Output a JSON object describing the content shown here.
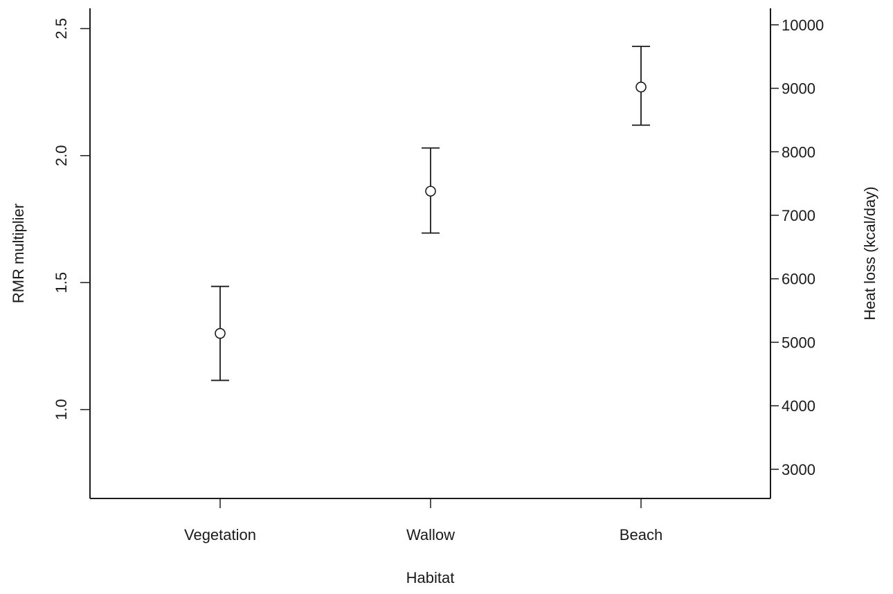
{
  "chart_data": {
    "type": "scatter",
    "title": "",
    "xlabel": "Habitat",
    "ylabel": "RMR multiplier",
    "y2label": "Heat loss (kcal/day)",
    "categories": [
      "Vegetation",
      "Wallow",
      "Beach"
    ],
    "series": [
      {
        "values": [
          1.3,
          1.86,
          2.27
        ],
        "lower": [
          1.115,
          1.695,
          2.12
        ],
        "upper": [
          1.485,
          2.03,
          2.43
        ]
      }
    ],
    "ylim": [
      0.65,
      2.58
    ],
    "yticks": [
      1.0,
      1.5,
      2.0,
      2.5
    ],
    "yticklabels": [
      "1.0",
      "1.5",
      "2.0",
      "2.5"
    ],
    "y2lim": [
      2540,
      10260
    ],
    "y2ticks": [
      3000,
      4000,
      5000,
      6000,
      7000,
      8000,
      9000,
      10000
    ],
    "y2ticklabels": [
      "3000",
      "4000",
      "5000",
      "6000",
      "7000",
      "8000",
      "9000",
      "10000"
    ],
    "grid": false,
    "legend": "none",
    "colors": {
      "ink": "#1a1a1a"
    }
  }
}
